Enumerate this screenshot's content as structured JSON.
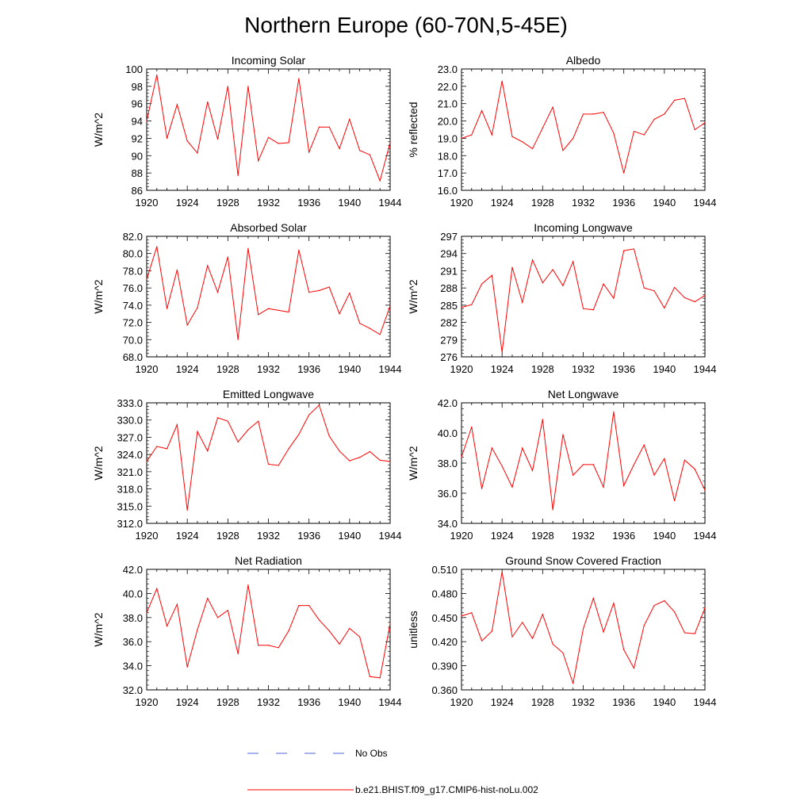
{
  "figure": {
    "title": "Northern Europe (60-70N,5-45E)",
    "legend": {
      "entries": [
        {
          "label": "No Obs",
          "color": "#4f63d8",
          "style": "dashed"
        },
        {
          "label": "b.e21.BHIST.f09_g17.CMIP6-hist-noLu.002",
          "color": "#ff0000",
          "style": "solid"
        }
      ]
    }
  },
  "chart_data": [
    {
      "type": "line",
      "title": "Incoming Solar",
      "ylabel": "W/m^2",
      "xlabel": "",
      "xlim": [
        1920,
        1944
      ],
      "ylim": [
        86,
        100
      ],
      "xticks": [
        "1920",
        "1924",
        "1928",
        "1932",
        "1936",
        "1940",
        "1944"
      ],
      "yticks": [
        "86",
        "88",
        "90",
        "92",
        "94",
        "96",
        "98",
        "100"
      ],
      "series": [
        {
          "color": "#ff0000",
          "x": [
            1920,
            1921,
            1922,
            1923,
            1924,
            1925,
            1926,
            1927,
            1928,
            1929,
            1930,
            1931,
            1932,
            1933,
            1934,
            1935,
            1936,
            1937,
            1938,
            1939,
            1940,
            1941,
            1942,
            1943,
            1944
          ],
          "values": [
            94.0,
            99.3,
            92.0,
            95.9,
            91.7,
            90.3,
            96.2,
            91.9,
            98.0,
            87.7,
            98.0,
            89.4,
            92.1,
            91.4,
            91.5,
            98.9,
            90.4,
            93.3,
            93.3,
            90.8,
            94.2,
            90.6,
            90.1,
            87.1,
            91.5
          ]
        }
      ]
    },
    {
      "type": "line",
      "title": "Albedo",
      "ylabel": "% reflected",
      "xlabel": "",
      "xlim": [
        1920,
        1944
      ],
      "ylim": [
        16.0,
        23.0
      ],
      "xticks": [
        "1920",
        "1924",
        "1928",
        "1932",
        "1936",
        "1940",
        "1944"
      ],
      "yticks": [
        "16.0",
        "17.0",
        "18.0",
        "19.0",
        "20.0",
        "21.0",
        "22.0",
        "23.0"
      ],
      "series": [
        {
          "color": "#ff0000",
          "x": [
            1920,
            1921,
            1922,
            1923,
            1924,
            1925,
            1926,
            1927,
            1928,
            1929,
            1930,
            1931,
            1932,
            1933,
            1934,
            1935,
            1936,
            1937,
            1938,
            1939,
            1940,
            1941,
            1942,
            1943,
            1944
          ],
          "values": [
            19.0,
            19.2,
            20.6,
            19.2,
            22.3,
            19.1,
            18.8,
            18.4,
            19.6,
            20.8,
            18.3,
            19.0,
            20.4,
            20.4,
            20.5,
            19.3,
            17.0,
            19.4,
            19.2,
            20.1,
            20.4,
            21.2,
            21.3,
            19.5,
            19.9
          ]
        }
      ]
    },
    {
      "type": "line",
      "title": "Absorbed Solar",
      "ylabel": "W/m^2",
      "xlabel": "",
      "xlim": [
        1920,
        1944
      ],
      "ylim": [
        68.0,
        82.0
      ],
      "xticks": [
        "1920",
        "1924",
        "1928",
        "1932",
        "1936",
        "1940",
        "1944"
      ],
      "yticks": [
        "68.0",
        "70.0",
        "72.0",
        "74.0",
        "76.0",
        "78.0",
        "80.0",
        "82.0"
      ],
      "series": [
        {
          "color": "#ff0000",
          "x": [
            1920,
            1921,
            1922,
            1923,
            1924,
            1925,
            1926,
            1927,
            1928,
            1929,
            1930,
            1931,
            1932,
            1933,
            1934,
            1935,
            1936,
            1937,
            1938,
            1939,
            1940,
            1941,
            1942,
            1943,
            1944
          ],
          "values": [
            77.0,
            80.8,
            73.6,
            78.1,
            71.7,
            73.7,
            78.6,
            75.5,
            79.6,
            70.0,
            80.6,
            72.9,
            73.6,
            73.4,
            73.2,
            80.4,
            75.5,
            75.7,
            76.1,
            73.0,
            75.4,
            71.9,
            71.3,
            70.6,
            73.9
          ]
        }
      ]
    },
    {
      "type": "line",
      "title": "Incoming Longwave",
      "ylabel": "W/m^2",
      "xlabel": "",
      "xlim": [
        1920,
        1944
      ],
      "ylim": [
        276,
        297
      ],
      "xticks": [
        "1920",
        "1924",
        "1928",
        "1932",
        "1936",
        "1940",
        "1944"
      ],
      "yticks": [
        "276",
        "279",
        "282",
        "285",
        "288",
        "291",
        "294",
        "297"
      ],
      "series": [
        {
          "color": "#ff0000",
          "x": [
            1920,
            1921,
            1922,
            1923,
            1924,
            1925,
            1926,
            1927,
            1928,
            1929,
            1930,
            1931,
            1932,
            1933,
            1934,
            1935,
            1936,
            1937,
            1938,
            1939,
            1940,
            1941,
            1942,
            1943,
            1944
          ],
          "values": [
            284.6,
            285.1,
            288.7,
            290.2,
            276.8,
            291.6,
            285.5,
            292.9,
            288.9,
            291.2,
            288.4,
            292.6,
            284.4,
            284.2,
            288.7,
            286.2,
            294.5,
            294.8,
            288.0,
            287.5,
            284.5,
            288.1,
            286.3,
            285.6,
            286.7
          ]
        }
      ]
    },
    {
      "type": "line",
      "title": "Emitted Longwave",
      "ylabel": "W/m^2",
      "xlabel": "",
      "xlim": [
        1920,
        1944
      ],
      "ylim": [
        312.0,
        333.0
      ],
      "xticks": [
        "1920",
        "1924",
        "1928",
        "1932",
        "1936",
        "1940",
        "1944"
      ],
      "yticks": [
        "312.0",
        "315.0",
        "318.0",
        "321.0",
        "324.0",
        "327.0",
        "330.0",
        "333.0"
      ],
      "series": [
        {
          "color": "#ff0000",
          "x": [
            1920,
            1921,
            1922,
            1923,
            1924,
            1925,
            1926,
            1927,
            1928,
            1929,
            1930,
            1931,
            1932,
            1933,
            1934,
            1935,
            1936,
            1937,
            1938,
            1939,
            1940,
            1941,
            1942,
            1943,
            1944
          ],
          "values": [
            322.8,
            325.4,
            325.0,
            329.2,
            314.3,
            328.0,
            324.6,
            330.4,
            329.8,
            326.2,
            328.3,
            329.8,
            322.3,
            322.1,
            325.0,
            327.5,
            330.9,
            332.6,
            327.2,
            324.6,
            322.9,
            323.5,
            324.5,
            323.0,
            322.8
          ]
        }
      ]
    },
    {
      "type": "line",
      "title": "Net Longwave",
      "ylabel": "W/m^2",
      "xlabel": "",
      "xlim": [
        1920,
        1944
      ],
      "ylim": [
        34.0,
        42.0
      ],
      "xticks": [
        "1920",
        "1924",
        "1928",
        "1932",
        "1936",
        "1940",
        "1944"
      ],
      "yticks": [
        "34.0",
        "36.0",
        "38.0",
        "40.0",
        "42.0"
      ],
      "series": [
        {
          "color": "#ff0000",
          "x": [
            1920,
            1921,
            1922,
            1923,
            1924,
            1925,
            1926,
            1927,
            1928,
            1929,
            1930,
            1931,
            1932,
            1933,
            1934,
            1935,
            1936,
            1937,
            1938,
            1939,
            1940,
            1941,
            1942,
            1943,
            1944
          ],
          "values": [
            38.4,
            40.4,
            36.3,
            39.0,
            37.8,
            36.4,
            39.0,
            37.5,
            40.9,
            34.9,
            39.9,
            37.2,
            37.9,
            37.9,
            36.4,
            41.4,
            36.5,
            37.9,
            39.2,
            37.2,
            38.3,
            35.5,
            38.2,
            37.6,
            36.2
          ]
        }
      ]
    },
    {
      "type": "line",
      "title": "Net Radiation",
      "ylabel": "W/m^2",
      "xlabel": "",
      "xlim": [
        1920,
        1944
      ],
      "ylim": [
        32.0,
        42.0
      ],
      "xticks": [
        "1920",
        "1924",
        "1928",
        "1932",
        "1936",
        "1940",
        "1944"
      ],
      "yticks": [
        "32.0",
        "34.0",
        "36.0",
        "38.0",
        "40.0",
        "42.0"
      ],
      "series": [
        {
          "color": "#ff0000",
          "x": [
            1920,
            1921,
            1922,
            1923,
            1924,
            1925,
            1926,
            1927,
            1928,
            1929,
            1930,
            1931,
            1932,
            1933,
            1934,
            1935,
            1936,
            1937,
            1938,
            1939,
            1940,
            1941,
            1942,
            1943,
            1944
          ],
          "values": [
            38.4,
            40.4,
            37.3,
            39.1,
            33.9,
            37.0,
            39.6,
            38.0,
            38.6,
            35.0,
            40.7,
            35.7,
            35.7,
            35.5,
            36.9,
            39.0,
            39.0,
            37.8,
            36.9,
            35.8,
            37.1,
            36.4,
            33.1,
            33.0,
            37.5
          ]
        }
      ]
    },
    {
      "type": "line",
      "title": "Ground Snow Covered Fraction",
      "ylabel": "unitless",
      "xlabel": "",
      "xlim": [
        1920,
        1944
      ],
      "ylim": [
        0.36,
        0.51
      ],
      "xticks": [
        "1920",
        "1924",
        "1928",
        "1932",
        "1936",
        "1940",
        "1944"
      ],
      "yticks": [
        "0.360",
        "0.390",
        "0.420",
        "0.450",
        "0.480",
        "0.510"
      ],
      "series": [
        {
          "color": "#ff0000",
          "x": [
            1920,
            1921,
            1922,
            1923,
            1924,
            1925,
            1926,
            1927,
            1928,
            1929,
            1930,
            1931,
            1932,
            1933,
            1934,
            1935,
            1936,
            1937,
            1938,
            1939,
            1940,
            1941,
            1942,
            1943,
            1944
          ],
          "values": [
            0.452,
            0.456,
            0.421,
            0.433,
            0.507,
            0.426,
            0.444,
            0.424,
            0.454,
            0.417,
            0.406,
            0.368,
            0.436,
            0.474,
            0.432,
            0.468,
            0.41,
            0.387,
            0.44,
            0.465,
            0.471,
            0.457,
            0.431,
            0.43,
            0.462
          ]
        }
      ]
    }
  ]
}
